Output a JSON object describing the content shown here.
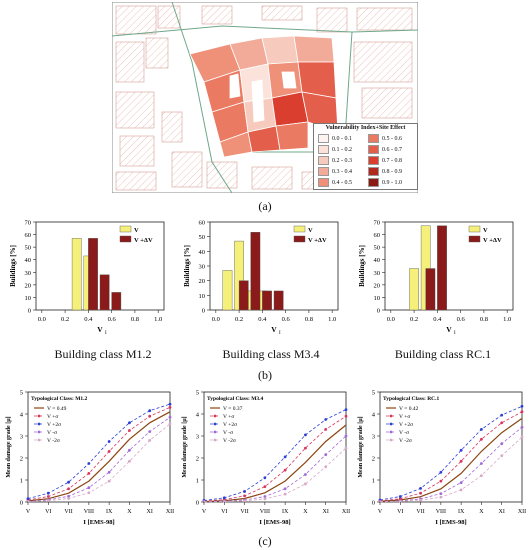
{
  "figure": {
    "caption_a": "(a)",
    "caption_b": "(b)",
    "caption_c": "(c)"
  },
  "map": {
    "legend_title": "Vulnerability Index+Site Effect",
    "legend_items": [
      {
        "label": "0.0 - 0.1",
        "color": "#fdf4f1"
      },
      {
        "label": "0.1 - 0.2",
        "color": "#fbe3dc"
      },
      {
        "label": "0.2 - 0.3",
        "color": "#f6cbbd"
      },
      {
        "label": "0.3 - 0.4",
        "color": "#f2ab98"
      },
      {
        "label": "0.4 - 0.5",
        "color": "#ee9178"
      },
      {
        "label": "0.5 - 0.6",
        "color": "#ea7a62"
      },
      {
        "label": "0.6 - 0.7",
        "color": "#e35f4c"
      },
      {
        "label": "0.7 - 0.8",
        "color": "#d93e2f"
      },
      {
        "label": "0.8 - 0.9",
        "color": "#b22a1f"
      },
      {
        "label": "0.9 - 1.0",
        "color": "#8b1a12"
      }
    ],
    "north_arrow": "north-arrow-icon"
  },
  "chart_data": [
    {
      "type": "bar",
      "id": "hist-m12",
      "building_class": "Building class M1.2",
      "xlabel": "V",
      "xlabel_sub": "I",
      "ylabel": "Buildings [%]",
      "xlim": [
        -0.05,
        1.05
      ],
      "ylim": [
        0,
        70
      ],
      "xticks": [
        0.0,
        0.2,
        0.4,
        0.6,
        0.8,
        1.0
      ],
      "yticks": [
        0,
        10,
        20,
        30,
        40,
        50,
        60,
        70
      ],
      "legend": [
        "V",
        "V +ΔV"
      ],
      "series": [
        {
          "name": "V",
          "color": "#f5f07a",
          "bars": [
            {
              "x": 0.3,
              "value": 57
            },
            {
              "x": 0.4,
              "value": 43
            }
          ]
        },
        {
          "name": "V +ΔV",
          "color": "#8b1a1a",
          "bars": [
            {
              "x": 0.44,
              "value": 57
            },
            {
              "x": 0.54,
              "value": 28
            },
            {
              "x": 0.64,
              "value": 14
            }
          ]
        }
      ]
    },
    {
      "type": "bar",
      "id": "hist-m34",
      "building_class": "Building class M3.4",
      "xlabel": "V",
      "xlabel_sub": "I",
      "ylabel": "Buildings [%]",
      "xlim": [
        -0.05,
        1.05
      ],
      "ylim": [
        0,
        60
      ],
      "xticks": [
        0.0,
        0.2,
        0.4,
        0.6,
        0.8,
        1.0
      ],
      "yticks": [
        0,
        10,
        20,
        30,
        40,
        50,
        60
      ],
      "legend": [
        "V",
        "V +ΔV"
      ],
      "series": [
        {
          "name": "V",
          "color": "#f5f07a",
          "bars": [
            {
              "x": 0.1,
              "value": 27
            },
            {
              "x": 0.2,
              "value": 47
            },
            {
              "x": 0.3,
              "value": 13
            },
            {
              "x": 0.4,
              "value": 13
            }
          ]
        },
        {
          "name": "V +ΔV",
          "color": "#8b1a1a",
          "bars": [
            {
              "x": 0.24,
              "value": 20
            },
            {
              "x": 0.34,
              "value": 53
            },
            {
              "x": 0.44,
              "value": 13
            },
            {
              "x": 0.54,
              "value": 13
            }
          ]
        }
      ]
    },
    {
      "type": "bar",
      "id": "hist-rc1",
      "building_class": "Building class RC.1",
      "xlabel": "V",
      "xlabel_sub": "I",
      "ylabel": "Buildings [%]",
      "xlim": [
        -0.05,
        1.05
      ],
      "ylim": [
        0,
        70
      ],
      "xticks": [
        0.0,
        0.2,
        0.4,
        0.6,
        0.8,
        1.0
      ],
      "yticks": [
        0,
        10,
        20,
        30,
        40,
        50,
        60,
        70
      ],
      "legend": [
        "V",
        "V +ΔV"
      ],
      "series": [
        {
          "name": "V",
          "color": "#f5f07a",
          "bars": [
            {
              "x": 0.2,
              "value": 33
            },
            {
              "x": 0.3,
              "value": 67
            }
          ]
        },
        {
          "name": "V +ΔV",
          "color": "#8b1a1a",
          "bars": [
            {
              "x": 0.34,
              "value": 33
            },
            {
              "x": 0.44,
              "value": 67
            }
          ]
        }
      ]
    },
    {
      "type": "line",
      "id": "curve-m12",
      "typological_class": "Typological Class: M1.2",
      "vmean_label": "V = 0.49",
      "vmean": 0.49,
      "xlabel": "I [EMS-98]",
      "ylabel": "Mean damage grade [μ]",
      "x": [
        "V",
        "VI",
        "VII",
        "VIII",
        "IX",
        "X",
        "XI",
        "XII"
      ],
      "ylim": [
        0,
        5
      ],
      "yticks": [
        0,
        1,
        2,
        3,
        4,
        5
      ],
      "legend": [
        "V +σ",
        "V +2σ",
        "V -σ",
        "V -2σ"
      ],
      "series": [
        {
          "name": "mean",
          "color": "#8b4513",
          "values": [
            0.05,
            0.15,
            0.4,
            0.95,
            1.85,
            2.85,
            3.6,
            4.1
          ]
        },
        {
          "name": "V +σ",
          "color": "#d9345c",
          "values": [
            0.09,
            0.25,
            0.6,
            1.3,
            2.3,
            3.25,
            3.9,
            4.3
          ]
        },
        {
          "name": "V +2σ",
          "color": "#2b3fd6",
          "values": [
            0.15,
            0.4,
            0.9,
            1.75,
            2.75,
            3.6,
            4.15,
            4.45
          ]
        },
        {
          "name": "V -σ",
          "color": "#a06ad8",
          "values": [
            0.03,
            0.1,
            0.26,
            0.65,
            1.35,
            2.35,
            3.2,
            3.85
          ]
        },
        {
          "name": "V -2σ",
          "color": "#d8a8c8",
          "values": [
            0.02,
            0.06,
            0.16,
            0.42,
            0.95,
            1.85,
            2.8,
            3.55
          ]
        }
      ]
    },
    {
      "type": "line",
      "id": "curve-m34",
      "typological_class": "Typological Class: M3.4",
      "vmean_label": "V = 0.37",
      "vmean": 0.37,
      "xlabel": "I [EMS-98]",
      "ylabel": "Mean damage grade [μ]",
      "x": [
        "V",
        "VI",
        "VII",
        "VIII",
        "IX",
        "X",
        "XI",
        "XII"
      ],
      "ylim": [
        0,
        5
      ],
      "yticks": [
        0,
        1,
        2,
        3,
        4,
        5
      ],
      "legend": [
        "V +σ",
        "V +2σ",
        "V -σ",
        "V -2σ"
      ],
      "series": [
        {
          "name": "mean",
          "color": "#8b4513",
          "values": [
            0.02,
            0.06,
            0.16,
            0.42,
            0.95,
            1.8,
            2.75,
            3.5
          ]
        },
        {
          "name": "V +σ",
          "color": "#d9345c",
          "values": [
            0.04,
            0.11,
            0.28,
            0.7,
            1.45,
            2.45,
            3.3,
            3.9
          ]
        },
        {
          "name": "V +2σ",
          "color": "#2b3fd6",
          "values": [
            0.07,
            0.19,
            0.48,
            1.1,
            2.05,
            3.05,
            3.75,
            4.2
          ]
        },
        {
          "name": "V -σ",
          "color": "#a06ad8",
          "values": [
            0.01,
            0.04,
            0.09,
            0.25,
            0.6,
            1.25,
            2.15,
            3.0
          ]
        },
        {
          "name": "V -2σ",
          "color": "#d8a8c8",
          "values": [
            0.01,
            0.02,
            0.05,
            0.14,
            0.36,
            0.82,
            1.6,
            2.45
          ]
        }
      ]
    },
    {
      "type": "line",
      "id": "curve-rc1",
      "typological_class": "Typological Class: RC.1",
      "vmean_label": "V = 0.42",
      "vmean": 0.42,
      "xlabel": "I [EMS-98]",
      "ylabel": "Mean damage grade [μ]",
      "x": [
        "V",
        "VI",
        "VII",
        "VIII",
        "IX",
        "X",
        "XI",
        "XII"
      ],
      "ylim": [
        0,
        5
      ],
      "yticks": [
        0,
        1,
        2,
        3,
        4,
        5
      ],
      "legend": [
        "V +σ",
        "V +2σ",
        "V -σ",
        "V -2σ"
      ],
      "series": [
        {
          "name": "mean",
          "color": "#8b4513",
          "values": [
            0.03,
            0.09,
            0.24,
            0.6,
            1.3,
            2.3,
            3.15,
            3.8
          ]
        },
        {
          "name": "V +σ",
          "color": "#d9345c",
          "values": [
            0.05,
            0.15,
            0.4,
            0.95,
            1.85,
            2.85,
            3.6,
            4.1
          ]
        },
        {
          "name": "V +2σ",
          "color": "#2b3fd6",
          "values": [
            0.09,
            0.25,
            0.62,
            1.35,
            2.35,
            3.3,
            3.95,
            4.35
          ]
        },
        {
          "name": "V -σ",
          "color": "#a06ad8",
          "values": [
            0.02,
            0.05,
            0.14,
            0.38,
            0.88,
            1.75,
            2.65,
            3.4
          ]
        },
        {
          "name": "V -2σ",
          "color": "#d8a8c8",
          "values": [
            0.01,
            0.03,
            0.08,
            0.22,
            0.55,
            1.2,
            2.1,
            2.95
          ]
        }
      ]
    }
  ]
}
